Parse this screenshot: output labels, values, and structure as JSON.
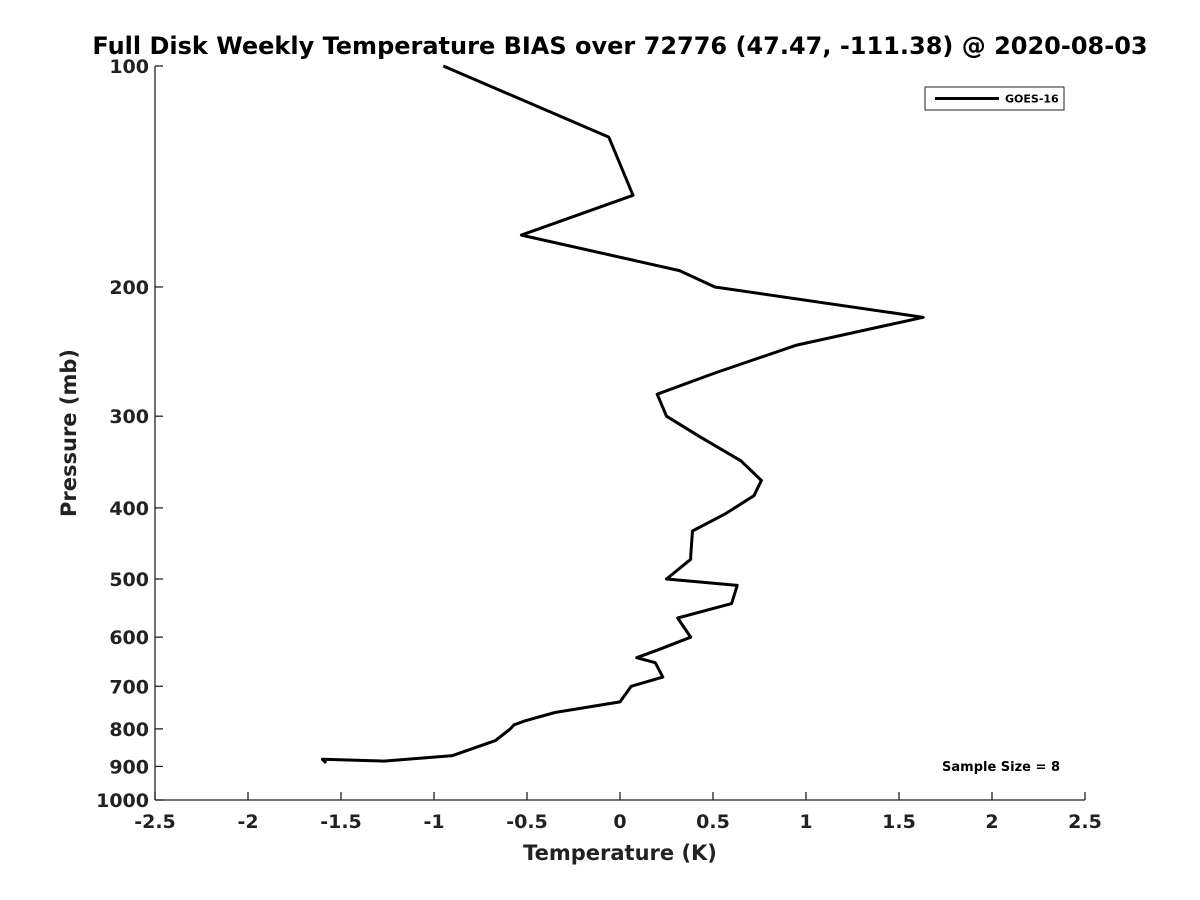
{
  "chart_data": {
    "type": "line",
    "title": "Full Disk Weekly Temperature BIAS over 72776 (47.47, -111.38) @ 2020-08-03",
    "xlabel": "Temperature (K)",
    "ylabel": "Pressure (mb)",
    "xlim": [
      -2.5,
      2.5
    ],
    "ylim": [
      100,
      1000
    ],
    "y_scale": "log",
    "y_reversed": true,
    "x_ticks": [
      -2.5,
      -2,
      -1.5,
      -1,
      -0.5,
      0,
      0.5,
      1,
      1.5,
      2,
      2.5
    ],
    "x_tick_labels": [
      "-2.5",
      "-2",
      "-1.5",
      "-1",
      "-0.5",
      "0",
      "0.5",
      "1",
      "1.5",
      "2",
      "2.5"
    ],
    "y_ticks": [
      100,
      200,
      300,
      400,
      500,
      600,
      700,
      800,
      900,
      1000
    ],
    "y_tick_labels": [
      "100",
      "200",
      "300",
      "400",
      "500",
      "600",
      "700",
      "800",
      "900",
      "1000"
    ],
    "grid": false,
    "legend_position": "top-right",
    "series": [
      {
        "name": "GOES-16",
        "color": "#000000",
        "x": [
          -0.95,
          -0.06,
          0.07,
          -0.53,
          0.32,
          0.51,
          1.63,
          0.95,
          0.51,
          0.2,
          0.25,
          0.43,
          0.65,
          0.76,
          0.72,
          0.57,
          0.39,
          0.38,
          0.38,
          0.25,
          0.63,
          0.6,
          0.31,
          0.38,
          0.2,
          0.09,
          0.19,
          0.23,
          0.06,
          0.0,
          -0.35,
          -0.51,
          -0.57,
          -0.59,
          -0.67,
          -0.9,
          -1.27,
          -1.6,
          -1.58
        ],
        "y": [
          100,
          125,
          150,
          170,
          190,
          200,
          220,
          240,
          262,
          280,
          300,
          320,
          345,
          367,
          385,
          407,
          430,
          465,
          470,
          500,
          510,
          540,
          565,
          600,
          625,
          640,
          650,
          680,
          700,
          735,
          760,
          780,
          790,
          800,
          830,
          870,
          885,
          880,
          890
        ]
      }
    ],
    "annotations": [
      "Sample Size = 8"
    ]
  }
}
